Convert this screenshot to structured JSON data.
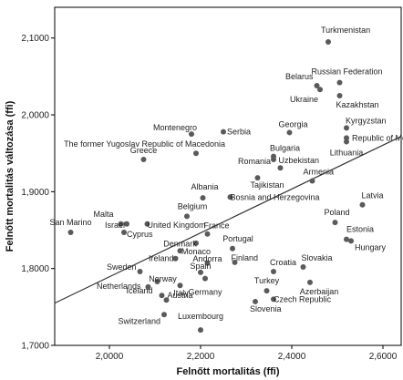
{
  "chart_data": {
    "type": "scatter",
    "xlabel": "Felnőtt mortalitás (ffi)",
    "ylabel": "Felnőtt mortalitás változása (ffi)",
    "xlim": [
      1.88,
      2.64
    ],
    "ylim": [
      1.7,
      2.14
    ],
    "xticks": [
      {
        "value": 2.0,
        "label": "2,0000"
      },
      {
        "value": 2.2,
        "label": "2,2000"
      },
      {
        "value": 2.4,
        "label": "2,4000"
      },
      {
        "value": 2.6,
        "label": "2,6000"
      }
    ],
    "yticks": [
      {
        "value": 1.7,
        "label": "1,7000"
      },
      {
        "value": 1.8,
        "label": "1,8000"
      },
      {
        "value": 1.9,
        "label": "1,9000"
      },
      {
        "value": 2.0,
        "label": "2,0000"
      },
      {
        "value": 2.1,
        "label": "2,1000"
      }
    ],
    "fit_line": {
      "x1": 1.88,
      "y1": 1.755,
      "x2": 2.64,
      "y2": 1.972
    },
    "marker_color": "#5a5a5a",
    "points": [
      {
        "name": "Turkmenistan",
        "x": 2.48,
        "y": 2.095,
        "anchor": "start",
        "dx": -8,
        "dy": -10
      },
      {
        "name": "Russian Federation",
        "x": 2.505,
        "y": 2.042,
        "anchor": "middle",
        "dx": 8,
        "dy": -9
      },
      {
        "name": "Belarus",
        "x": 2.455,
        "y": 2.038,
        "anchor": "end",
        "dx": -4,
        "dy": -7
      },
      {
        "name": "Ukraine",
        "x": 2.462,
        "y": 2.033,
        "anchor": "end",
        "dx": -2,
        "dy": 14
      },
      {
        "name": "Kazakhstan",
        "x": 2.505,
        "y": 2.025,
        "anchor": "start",
        "dx": -4,
        "dy": 13
      },
      {
        "name": "Kyrgyzstan",
        "x": 2.52,
        "y": 1.983,
        "anchor": "start",
        "dx": -1,
        "dy": -5
      },
      {
        "name": "Georgia",
        "x": 2.395,
        "y": 1.977,
        "anchor": "middle",
        "dx": 4,
        "dy": -6
      },
      {
        "name": "Republic of Moldova",
        "x": 2.52,
        "y": 1.97,
        "anchor": "start",
        "dx": 6,
        "dy": 3
      },
      {
        "name": "Lithuania",
        "x": 2.52,
        "y": 1.965,
        "anchor": "middle",
        "dx": 0,
        "dy": 15
      },
      {
        "name": "Montenegro",
        "x": 2.18,
        "y": 1.975,
        "anchor": "end",
        "dx": 6,
        "dy": -4
      },
      {
        "name": "Serbia",
        "x": 2.25,
        "y": 1.978,
        "anchor": "start",
        "dx": 4,
        "dy": 3
      },
      {
        "name": "The former Yugoslav Republic of Macedonia",
        "x": 2.19,
        "y": 1.95,
        "anchor": "end",
        "dx": 32,
        "dy": -7
      },
      {
        "name": "Bulgaria",
        "x": 2.36,
        "y": 1.946,
        "anchor": "start",
        "dx": -4,
        "dy": -6
      },
      {
        "name": "Romania",
        "x": 2.36,
        "y": 1.942,
        "anchor": "end",
        "dx": -3,
        "dy": 5
      },
      {
        "name": "Uzbekistan",
        "x": 2.375,
        "y": 1.931,
        "anchor": "start",
        "dx": -2,
        "dy": -5
      },
      {
        "name": "Greece",
        "x": 2.075,
        "y": 1.942,
        "anchor": "middle",
        "dx": 0,
        "dy": -7
      },
      {
        "name": "Armenia",
        "x": 2.445,
        "y": 1.914,
        "anchor": "start",
        "dx": -10,
        "dy": -7
      },
      {
        "name": "Tajikistan",
        "x": 2.325,
        "y": 1.918,
        "anchor": "start",
        "dx": -8,
        "dy": 11
      },
      {
        "name": "Albania",
        "x": 2.205,
        "y": 1.892,
        "anchor": "middle",
        "dx": 2,
        "dy": -9
      },
      {
        "name": "Bosnia and Herzegovina",
        "x": 2.265,
        "y": 1.893,
        "anchor": "start",
        "dx": 0,
        "dy": 3
      },
      {
        "name": "Latvia",
        "x": 2.555,
        "y": 1.883,
        "anchor": "start",
        "dx": -1,
        "dy": -7
      },
      {
        "name": "Belgium",
        "x": 2.17,
        "y": 1.868,
        "anchor": "middle",
        "dx": 6,
        "dy": -8
      },
      {
        "name": "Poland",
        "x": 2.495,
        "y": 1.86,
        "anchor": "start",
        "dx": -12,
        "dy": -8
      },
      {
        "name": "Malta",
        "x": 2.025,
        "y": 1.858,
        "anchor": "end",
        "dx": -8,
        "dy": -8
      },
      {
        "name": "San Marino",
        "x": 1.915,
        "y": 1.847,
        "anchor": "middle",
        "dx": 0,
        "dy": -8
      },
      {
        "name": "Israel",
        "x": 2.038,
        "y": 1.858,
        "anchor": "end",
        "dx": -2,
        "dy": 4
      },
      {
        "name": "Cyprus",
        "x": 2.032,
        "y": 1.847,
        "anchor": "start",
        "dx": 3,
        "dy": 5
      },
      {
        "name": "United Kingdom",
        "x": 2.083,
        "y": 1.858,
        "anchor": "start",
        "dx": 0,
        "dy": 4
      },
      {
        "name": "France",
        "x": 2.215,
        "y": 1.845,
        "anchor": "start",
        "dx": -4,
        "dy": -6
      },
      {
        "name": "Monaco",
        "x": 2.19,
        "y": 1.833,
        "anchor": "middle",
        "dx": 0,
        "dy": 12
      },
      {
        "name": "Estonia",
        "x": 2.52,
        "y": 1.838,
        "anchor": "start",
        "dx": 0,
        "dy": -8
      },
      {
        "name": "Hungary",
        "x": 2.53,
        "y": 1.836,
        "anchor": "start",
        "dx": 4,
        "dy": 10
      },
      {
        "name": "Portugal",
        "x": 2.27,
        "y": 1.826,
        "anchor": "middle",
        "dx": 6,
        "dy": -8
      },
      {
        "name": "Denmark",
        "x": 2.155,
        "y": 1.823,
        "anchor": "middle",
        "dx": 0,
        "dy": -5
      },
      {
        "name": "Ireland",
        "x": 2.145,
        "y": 1.813,
        "anchor": "end",
        "dx": -2,
        "dy": 3
      },
      {
        "name": "Andorra",
        "x": 2.215,
        "y": 1.807,
        "anchor": "middle",
        "dx": 0,
        "dy": -2
      },
      {
        "name": "Finland",
        "x": 2.275,
        "y": 1.808,
        "anchor": "start",
        "dx": -4,
        "dy": -2
      },
      {
        "name": "Sweden",
        "x": 2.067,
        "y": 1.796,
        "anchor": "end",
        "dx": -4,
        "dy": -2
      },
      {
        "name": "Croatia",
        "x": 2.36,
        "y": 1.796,
        "anchor": "start",
        "dx": -4,
        "dy": -7
      },
      {
        "name": "Slovakia",
        "x": 2.425,
        "y": 1.802,
        "anchor": "start",
        "dx": -2,
        "dy": -7
      },
      {
        "name": "Spain",
        "x": 2.2,
        "y": 1.795,
        "anchor": "middle",
        "dx": 0,
        "dy": -4
      },
      {
        "name": "Norway",
        "x": 2.105,
        "y": 1.783,
        "anchor": "middle",
        "dx": 6,
        "dy": 0
      },
      {
        "name": "Netherlands",
        "x": 2.085,
        "y": 1.776,
        "anchor": "end",
        "dx": -8,
        "dy": 2
      },
      {
        "name": "Austria",
        "x": 2.155,
        "y": 1.778,
        "anchor": "middle",
        "dx": 0,
        "dy": 14
      },
      {
        "name": "Germany",
        "x": 2.21,
        "y": 1.787,
        "anchor": "middle",
        "dx": 0,
        "dy": 18
      },
      {
        "name": "Turkey",
        "x": 2.345,
        "y": 1.771,
        "anchor": "middle",
        "dx": 0,
        "dy": -8
      },
      {
        "name": "Azerbaijan",
        "x": 2.44,
        "y": 1.782,
        "anchor": "middle",
        "dx": 10,
        "dy": 13
      },
      {
        "name": "Iceland",
        "x": 2.115,
        "y": 1.765,
        "anchor": "end",
        "dx": -10,
        "dy": -2
      },
      {
        "name": "Italy",
        "x": 2.125,
        "y": 1.759,
        "anchor": "middle",
        "dx": 16,
        "dy": -5
      },
      {
        "name": "Czech Republic",
        "x": 2.36,
        "y": 1.76,
        "anchor": "start",
        "dx": 0,
        "dy": 3
      },
      {
        "name": "Slovenia",
        "x": 2.32,
        "y": 1.757,
        "anchor": "start",
        "dx": -6,
        "dy": 11
      },
      {
        "name": "Switzerland",
        "x": 2.12,
        "y": 1.74,
        "anchor": "end",
        "dx": -4,
        "dy": 10
      },
      {
        "name": "Luxembourg",
        "x": 2.2,
        "y": 1.72,
        "anchor": "middle",
        "dx": 0,
        "dy": -12
      }
    ]
  }
}
